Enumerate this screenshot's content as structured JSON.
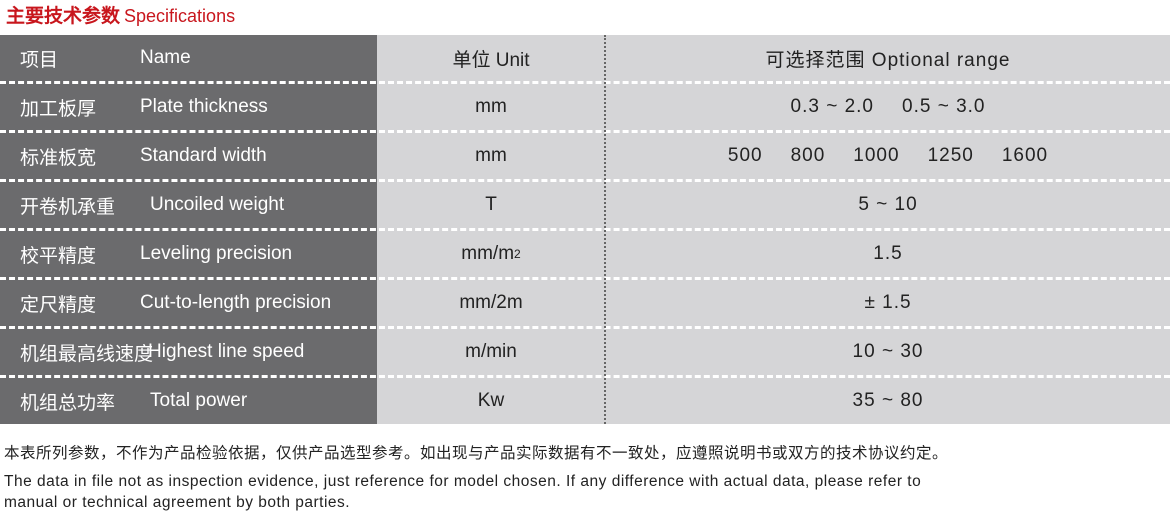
{
  "title": {
    "cn": "主要技术参数",
    "en": "Specifications",
    "color": "#c8161d"
  },
  "header": {
    "name_cn": "项目",
    "name_en": "Name",
    "unit": "单位 Unit",
    "range": "可选择范围 Optional range"
  },
  "rows": [
    {
      "cn": "加工板厚",
      "en": "Plate thickness",
      "unit": "mm",
      "sup": "",
      "range": [
        "0.3 ~ 2.0",
        "0.5 ~ 3.0"
      ]
    },
    {
      "cn": "标准板宽",
      "en": "Standard width",
      "unit": "mm",
      "sup": "",
      "range": [
        "500",
        "800",
        "1000",
        "1250",
        "1600"
      ]
    },
    {
      "cn": "开卷机承重",
      "en": "Uncoiled weight",
      "unit": "T",
      "sup": "",
      "range": [
        "5 ~ 10"
      ]
    },
    {
      "cn": "校平精度",
      "en": "Leveling precision",
      "unit": "mm/m",
      "sup": "2",
      "range": [
        "1.5"
      ]
    },
    {
      "cn": "定尺精度",
      "en": "Cut-to-length precision",
      "unit": "mm/2m",
      "sup": "",
      "range": [
        "± 1.5"
      ]
    },
    {
      "cn": "机组最高线速度",
      "en": "Highest line speed",
      "unit": "m/min",
      "sup": "",
      "range": [
        "10 ~ 30"
      ]
    },
    {
      "cn": "机组总功率",
      "en": "Total power",
      "unit": "Kw",
      "sup": "",
      "range": [
        "35 ~ 80"
      ]
    }
  ],
  "notes": {
    "cn": "本表所列参数，不作为产品检验依据，仅供产品选型参考。如出现与产品实际数据有不一致处，应遵照说明书或双方的技术协议约定。",
    "en1": "The data in file not as inspection evidence, just reference for model chosen. If any difference with actual data, please refer to",
    "en2": "manual or technical agreement by both parties."
  }
}
